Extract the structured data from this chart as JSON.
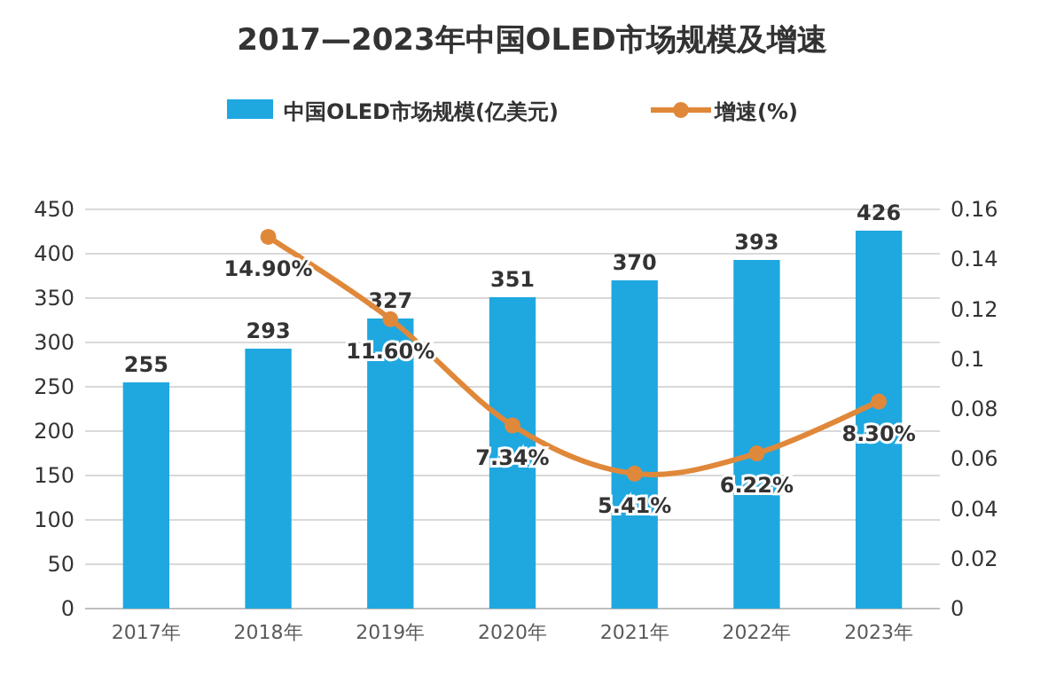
{
  "chart_data": {
    "type": "bar",
    "title": "2017—2023年中国OLED市场规模及增速",
    "categories": [
      "2017年",
      "2018年",
      "2019年",
      "2020年",
      "2021年",
      "2022年",
      "2023年"
    ],
    "series": [
      {
        "name": "中国OLED市场规模(亿美元)",
        "color": "#1fa8e0",
        "values": [
          255,
          293,
          327,
          351,
          370,
          393,
          426
        ],
        "value_labels": [
          "255",
          "293",
          "327",
          "351",
          "370",
          "393",
          "426"
        ]
      },
      {
        "name": "增速(%)",
        "type": "line",
        "axis": "y2",
        "color": "#e0883a",
        "marker": "circle",
        "values": [
          null,
          0.149,
          0.116,
          0.0734,
          0.0541,
          0.0622,
          0.083
        ],
        "value_labels": [
          null,
          "14.90%",
          "11.60%",
          "7.34%",
          "5.41%",
          "6.22%",
          "8.30%"
        ]
      }
    ],
    "ylim": [
      0,
      450
    ],
    "yticks": [
      0,
      50,
      100,
      150,
      200,
      250,
      300,
      350,
      400,
      450
    ],
    "y2lim": [
      0,
      0.16
    ],
    "y2ticks": [
      0,
      0.02,
      0.04,
      0.06,
      0.08,
      0.1,
      0.12,
      0.14,
      0.16
    ],
    "grid": "y",
    "legend": "top"
  }
}
